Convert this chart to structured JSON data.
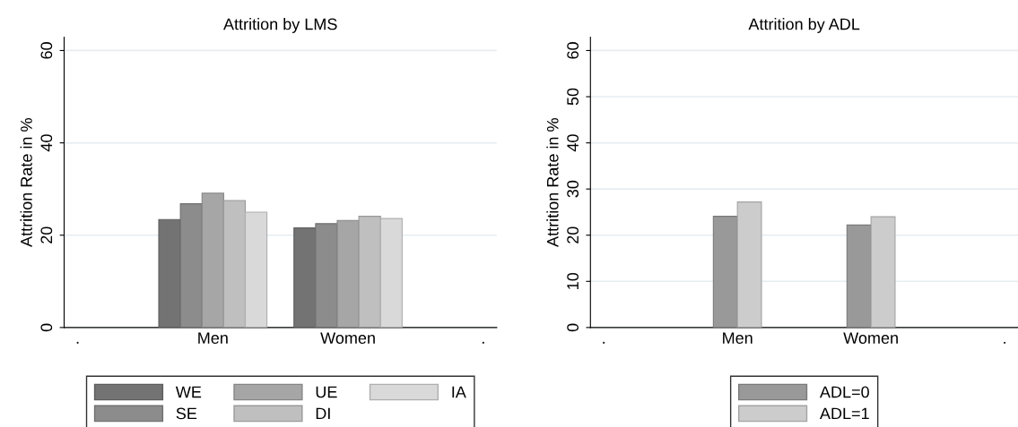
{
  "chart_data": [
    {
      "type": "bar",
      "title": "Attrition by LMS",
      "ylabel": "Attrition Rate in %",
      "categories": [
        ".",
        "Men",
        "Women",
        "."
      ],
      "ylim": [
        0,
        62.9
      ],
      "yticks": [
        0,
        20,
        40,
        60
      ],
      "grid": "y",
      "legend": "bottom",
      "series": [
        {
          "name": "WE",
          "color": "#737373",
          "values": [
            null,
            23.4,
            21.6,
            null
          ]
        },
        {
          "name": "SE",
          "color": "#8c8c8c",
          "values": [
            null,
            26.8,
            22.5,
            null
          ]
        },
        {
          "name": "UE",
          "color": "#a6a6a6",
          "values": [
            null,
            29.1,
            23.2,
            null
          ]
        },
        {
          "name": "DI",
          "color": "#bfbfbf",
          "values": [
            null,
            27.5,
            24.1,
            null
          ]
        },
        {
          "name": "IA",
          "color": "#d9d9d9",
          "values": [
            null,
            25.0,
            23.6,
            null
          ]
        }
      ]
    },
    {
      "type": "bar",
      "title": "Attrition by ADL",
      "ylabel": "Attrition Rate in %",
      "categories": [
        ".",
        "Men",
        "Women",
        "."
      ],
      "ylim": [
        0,
        62.9
      ],
      "yticks": [
        0,
        10,
        20,
        30,
        40,
        50,
        60
      ],
      "grid": "y",
      "legend": "bottom",
      "series": [
        {
          "name": "ADL=0",
          "color": "#999999",
          "values": [
            null,
            24.1,
            22.2,
            null
          ]
        },
        {
          "name": "ADL=1",
          "color": "#cccccc",
          "values": [
            null,
            27.2,
            24.0,
            null
          ]
        }
      ]
    }
  ]
}
